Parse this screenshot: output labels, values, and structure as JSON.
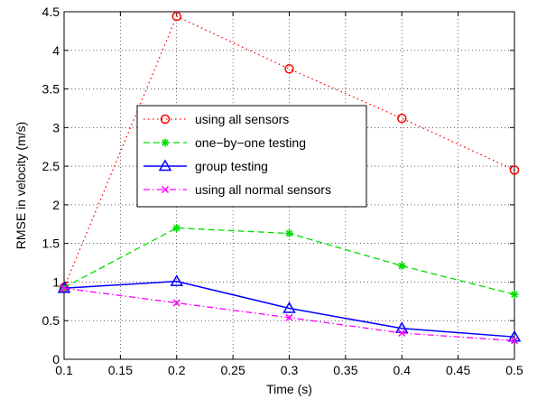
{
  "chart_data": {
    "type": "line",
    "title": "",
    "xlabel": "Time (s)",
    "ylabel": "RMSE in velocity (m/s)",
    "xlim": [
      0.1,
      0.5
    ],
    "ylim": [
      0,
      4.5
    ],
    "xticks": [
      0.1,
      0.15,
      0.2,
      0.25,
      0.3,
      0.35,
      0.4,
      0.45,
      0.5
    ],
    "yticks": [
      0,
      0.5,
      1,
      1.5,
      2,
      2.5,
      3,
      3.5,
      4,
      4.5
    ],
    "xtick_labels": [
      "0.1",
      "0.15",
      "0.2",
      "0.25",
      "0.3",
      "0.35",
      "0.4",
      "0.45",
      "0.5"
    ],
    "ytick_labels": [
      "0",
      "0.5",
      "1",
      "1.5",
      "2",
      "2.5",
      "3",
      "3.5",
      "4",
      "4.5"
    ],
    "grid": true,
    "legend_position": "center-left",
    "x": [
      0.1,
      0.2,
      0.3,
      0.4,
      0.5
    ],
    "series": [
      {
        "name": "using all sensors",
        "values": [
          0.93,
          4.44,
          3.76,
          3.12,
          2.45
        ],
        "color": "#ff0000",
        "linestyle": "dotted",
        "marker": "circle"
      },
      {
        "name": "one−by−one testing",
        "values": [
          0.93,
          1.7,
          1.63,
          1.21,
          0.84
        ],
        "color": "#00dd00",
        "linestyle": "dashed",
        "marker": "star"
      },
      {
        "name": "group testing",
        "values": [
          0.92,
          1.01,
          0.66,
          0.4,
          0.29
        ],
        "color": "#0000ff",
        "linestyle": "solid",
        "marker": "triangle"
      },
      {
        "name": "using all normal sensors",
        "values": [
          0.92,
          0.73,
          0.54,
          0.34,
          0.24
        ],
        "color": "#ff00ff",
        "linestyle": "dashdot",
        "marker": "x"
      }
    ]
  }
}
